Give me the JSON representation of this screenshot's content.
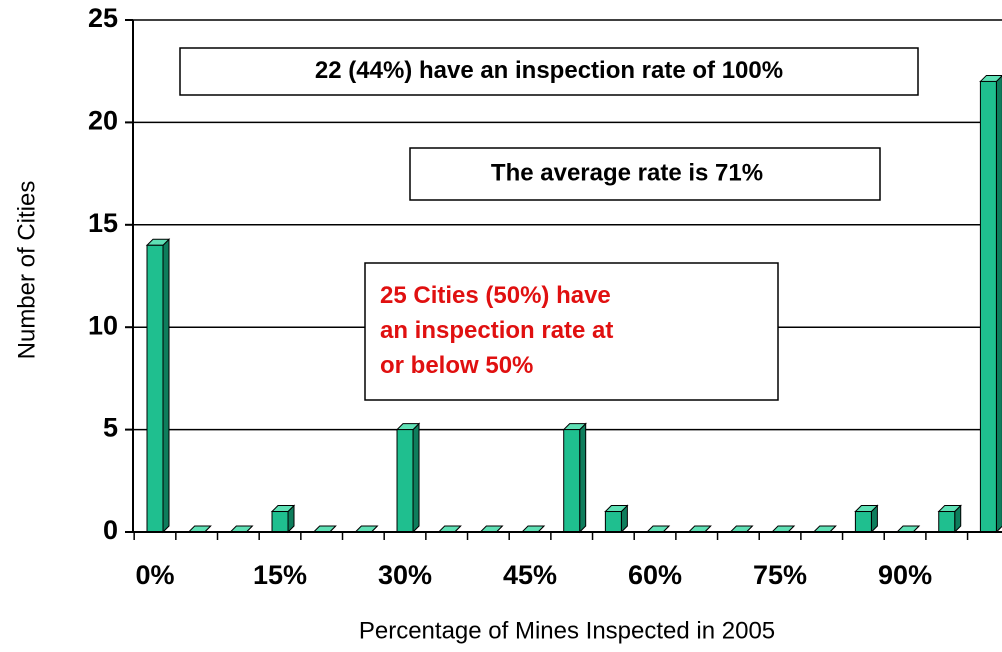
{
  "chart_data": {
    "type": "bar",
    "x_label": "Percentage of Mines Inspected in 2005",
    "y_label": "Number of Cities",
    "categories": [
      "0%",
      null,
      null,
      "15%",
      null,
      null,
      "30%",
      null,
      null,
      "45%",
      null,
      null,
      "60%",
      null,
      null,
      "75%",
      null,
      null,
      "90%",
      null,
      null
    ],
    "values": [
      14,
      0,
      0,
      1,
      0,
      0,
      5,
      0,
      0,
      0,
      5,
      1,
      0,
      0,
      0,
      0,
      0,
      1,
      0,
      1,
      22
    ],
    "color": "#1fbf8f",
    "ylim": [
      0,
      25
    ],
    "yticks": [
      0,
      5,
      10,
      15,
      20,
      25
    ],
    "grid": true,
    "annotations": [
      {
        "lines": [
          "22 (44%) have an inspection rate of 100%"
        ],
        "color": "#000000"
      },
      {
        "lines": [
          "The average rate is 71%"
        ],
        "color": "#000000"
      },
      {
        "lines": [
          "25 Cities (50%) have",
          "an inspection rate at",
          "or below 50%"
        ],
        "color": "#e01010"
      }
    ]
  }
}
